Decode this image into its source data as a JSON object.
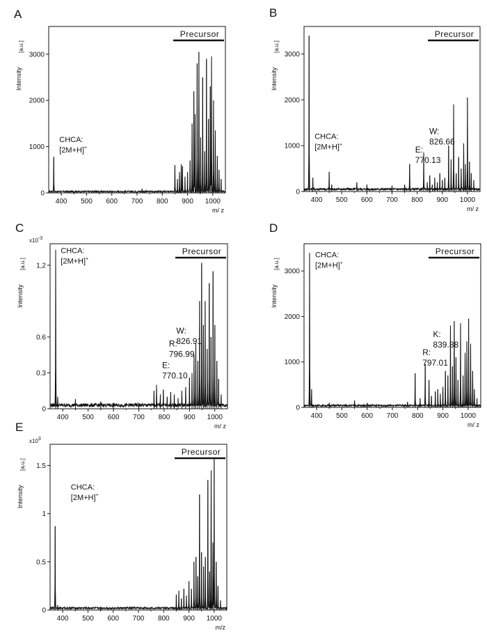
{
  "figure": {
    "x_label": "m/ z",
    "y_label": "Intensity",
    "unit_label": "[a.u.]",
    "precursor_label": "Precursor",
    "x_ticks": [
      400,
      500,
      600,
      700,
      800,
      900,
      1000
    ]
  },
  "chart_data": [
    {
      "panel": "A",
      "type": "line",
      "title": "",
      "xlabel": "m/ z",
      "ylabel": "Intensity [a.u.]",
      "xlim": [
        350,
        1050
      ],
      "ylim": [
        0,
        3600
      ],
      "y_ticks": [
        0,
        1000,
        2000,
        3000
      ],
      "y_tick_labels": [
        "0",
        "1000",
        "2000",
        "3000"
      ],
      "multiplier": "",
      "baseline": 30,
      "annotations": [
        {
          "lines": [
            "CHCA:",
            "[2M+H]"
          ],
          "sup": "+",
          "mz": 370,
          "y": 1100
        }
      ],
      "peaks": [
        [
          370,
          780
        ],
        [
          720,
          90
        ],
        [
          850,
          600
        ],
        [
          860,
          300
        ],
        [
          868,
          450
        ],
        [
          875,
          620
        ],
        [
          880,
          580
        ],
        [
          890,
          350
        ],
        [
          900,
          450
        ],
        [
          910,
          700
        ],
        [
          918,
          1500
        ],
        [
          925,
          2200
        ],
        [
          930,
          1700
        ],
        [
          938,
          2800
        ],
        [
          945,
          3050
        ],
        [
          952,
          1200
        ],
        [
          960,
          2500
        ],
        [
          968,
          900
        ],
        [
          975,
          2900
        ],
        [
          983,
          1600
        ],
        [
          990,
          2300
        ],
        [
          995,
          2950
        ],
        [
          1003,
          2000
        ],
        [
          1010,
          1350
        ],
        [
          1018,
          800
        ],
        [
          1025,
          500
        ],
        [
          1033,
          300
        ]
      ]
    },
    {
      "panel": "B",
      "type": "line",
      "title": "",
      "xlabel": "m/ z",
      "ylabel": "Intensity [a.u.]",
      "xlim": [
        350,
        1050
      ],
      "ylim": [
        0,
        3600
      ],
      "y_ticks": [
        0,
        1000,
        2000,
        3000
      ],
      "y_tick_labels": [
        "0",
        "1000",
        "2000",
        "3000"
      ],
      "multiplier": "",
      "baseline": 50,
      "annotations": [
        {
          "lines": [
            "CHCA:",
            "[2M+H]"
          ],
          "sup": "+",
          "mz": 370,
          "y": 1150
        },
        {
          "lines": [
            "E:",
            "770.13"
          ],
          "sup": "",
          "mz": 770,
          "y": 850
        },
        {
          "lines": [
            "W:",
            "826.66"
          ],
          "sup": "",
          "mz": 826,
          "y": 1250
        }
      ],
      "peaks": [
        [
          370,
          3400
        ],
        [
          385,
          300
        ],
        [
          450,
          430
        ],
        [
          460,
          150
        ],
        [
          560,
          200
        ],
        [
          600,
          150
        ],
        [
          700,
          130
        ],
        [
          750,
          150
        ],
        [
          770,
          600
        ],
        [
          826,
          850
        ],
        [
          840,
          200
        ],
        [
          850,
          350
        ],
        [
          860,
          150
        ],
        [
          870,
          300
        ],
        [
          880,
          200
        ],
        [
          890,
          400
        ],
        [
          900,
          250
        ],
        [
          910,
          300
        ],
        [
          925,
          1000
        ],
        [
          935,
          700
        ],
        [
          945,
          1900
        ],
        [
          955,
          400
        ],
        [
          965,
          750
        ],
        [
          975,
          500
        ],
        [
          985,
          1050
        ],
        [
          992,
          600
        ],
        [
          1000,
          2050
        ],
        [
          1008,
          650
        ],
        [
          1015,
          400
        ],
        [
          1025,
          250
        ]
      ]
    },
    {
      "panel": "C",
      "type": "line",
      "title": "",
      "xlabel": "m/ z",
      "ylabel": "Intensity [a.u.]",
      "xlim": [
        350,
        1050
      ],
      "ylim": [
        0,
        1.38
      ],
      "y_ticks": [
        0,
        0.3,
        0.6,
        1.2
      ],
      "y_tick_labels": [
        "0",
        "0.3",
        "0.6",
        "1,2"
      ],
      "multiplier": "x10",
      "multiplier_exp": "-3",
      "baseline": 0.03,
      "annotations": [
        {
          "lines": [
            "CHCA:",
            "[2M+H]"
          ],
          "sup": "+",
          "mz": 370,
          "y": 1.3
        },
        {
          "lines": [
            "E:",
            "770.10"
          ],
          "sup": "",
          "mz": 770,
          "y": 0.34
        },
        {
          "lines": [
            "R:",
            "796.99"
          ],
          "sup": "",
          "mz": 797,
          "y": 0.52
        },
        {
          "lines": [
            "W:",
            "826.91"
          ],
          "sup": "",
          "mz": 826,
          "y": 0.63
        }
      ],
      "peaks": [
        [
          372,
          1.33
        ],
        [
          380,
          0.1
        ],
        [
          450,
          0.08
        ],
        [
          550,
          0.06
        ],
        [
          600,
          0.05
        ],
        [
          700,
          0.05
        ],
        [
          760,
          0.15
        ],
        [
          770,
          0.2
        ],
        [
          785,
          0.12
        ],
        [
          797,
          0.16
        ],
        [
          812,
          0.1
        ],
        [
          826,
          0.14
        ],
        [
          840,
          0.12
        ],
        [
          855,
          0.09
        ],
        [
          870,
          0.15
        ],
        [
          885,
          0.18
        ],
        [
          900,
          0.26
        ],
        [
          910,
          0.3
        ],
        [
          918,
          0.45
        ],
        [
          925,
          0.55
        ],
        [
          933,
          0.4
        ],
        [
          940,
          0.9
        ],
        [
          948,
          1.22
        ],
        [
          955,
          0.7
        ],
        [
          962,
          0.9
        ],
        [
          970,
          0.5
        ],
        [
          978,
          1.05
        ],
        [
          985,
          0.6
        ],
        [
          993,
          1.15
        ],
        [
          1000,
          0.7
        ],
        [
          1008,
          0.4
        ],
        [
          1015,
          0.25
        ],
        [
          1025,
          0.12
        ]
      ]
    },
    {
      "panel": "D",
      "type": "line",
      "title": "",
      "xlabel": "m/ z",
      "ylabel": "Intensity [a.u.]",
      "xlim": [
        350,
        1050
      ],
      "ylim": [
        0,
        3600
      ],
      "y_ticks": [
        0,
        1000,
        2000,
        3000
      ],
      "y_tick_labels": [
        "0",
        "1000",
        "2000",
        "3000"
      ],
      "multiplier": "",
      "baseline": 40,
      "annotations": [
        {
          "lines": [
            "CHCA:",
            "[2M+H]"
          ],
          "sup": "+",
          "mz": 372,
          "y": 3300
        },
        {
          "lines": [
            "R:",
            "797.01"
          ],
          "sup": "",
          "mz": 797,
          "y": 1150
        },
        {
          "lines": [
            "K:",
            "839.88"
          ],
          "sup": "",
          "mz": 839,
          "y": 1550
        }
      ],
      "peaks": [
        [
          372,
          3400
        ],
        [
          380,
          400
        ],
        [
          450,
          100
        ],
        [
          550,
          150
        ],
        [
          600,
          100
        ],
        [
          760,
          120
        ],
        [
          790,
          750
        ],
        [
          810,
          200
        ],
        [
          830,
          950
        ],
        [
          845,
          600
        ],
        [
          855,
          250
        ],
        [
          870,
          350
        ],
        [
          880,
          400
        ],
        [
          890,
          300
        ],
        [
          900,
          450
        ],
        [
          910,
          800
        ],
        [
          920,
          700
        ],
        [
          930,
          1800
        ],
        [
          938,
          900
        ],
        [
          945,
          1900
        ],
        [
          952,
          1100
        ],
        [
          960,
          600
        ],
        [
          970,
          1850
        ],
        [
          980,
          700
        ],
        [
          988,
          1200
        ],
        [
          995,
          1450
        ],
        [
          1002,
          1950
        ],
        [
          1010,
          1400
        ],
        [
          1018,
          800
        ],
        [
          1025,
          400
        ],
        [
          1035,
          200
        ]
      ]
    },
    {
      "panel": "E",
      "type": "line",
      "title": "",
      "xlabel": "m/z",
      "ylabel": "Intensity [a.u.]",
      "xlim": [
        350,
        1050
      ],
      "ylim": [
        0,
        1.72
      ],
      "y_ticks": [
        0,
        0.5,
        1,
        1.5
      ],
      "y_tick_labels": [
        "0",
        "0.5",
        "1",
        "1.5"
      ],
      "multiplier": "x10",
      "multiplier_exp": "3",
      "baseline": 0.02,
      "annotations": [
        {
          "lines": [
            "CHCA:",
            "[2M+H]"
          ],
          "sup": "+",
          "mz": 410,
          "y": 1.25
        }
      ],
      "peaks": [
        [
          370,
          0.87
        ],
        [
          380,
          0.05
        ],
        [
          550,
          0.03
        ],
        [
          850,
          0.16
        ],
        [
          860,
          0.2
        ],
        [
          870,
          0.12
        ],
        [
          880,
          0.22
        ],
        [
          890,
          0.15
        ],
        [
          900,
          0.3
        ],
        [
          910,
          0.22
        ],
        [
          920,
          0.5
        ],
        [
          928,
          0.55
        ],
        [
          935,
          0.35
        ],
        [
          942,
          1.2
        ],
        [
          950,
          0.6
        ],
        [
          958,
          0.45
        ],
        [
          965,
          0.55
        ],
        [
          975,
          1.35
        ],
        [
          982,
          0.4
        ],
        [
          988,
          1.45
        ],
        [
          995,
          0.7
        ],
        [
          1000,
          1.57
        ],
        [
          1008,
          0.5
        ],
        [
          1015,
          0.25
        ],
        [
          1025,
          0.1
        ]
      ]
    }
  ]
}
